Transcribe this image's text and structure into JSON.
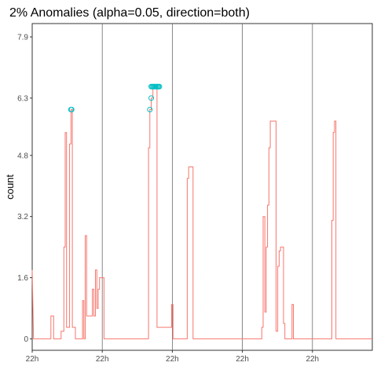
{
  "chart_data": {
    "type": "line",
    "title": "2% Anomalies (alpha=0.05, direction=both)",
    "xlabel": "",
    "ylabel": "count",
    "grid": true,
    "legend": "none",
    "xlim": [
      0,
      100
    ],
    "ylim": [
      -0.3,
      8.25
    ],
    "x_tick_values": [
      0,
      20.6,
      41.2,
      61.8,
      82.4
    ],
    "x_tick_labels": [
      "22h",
      "22h",
      "22h",
      "22h",
      "22h"
    ],
    "y_tick_values": [
      0,
      1.6,
      3.2,
      4.8,
      6.3,
      7.9
    ],
    "y_tick_labels": [
      "0",
      "1.6",
      "3.2",
      "4.8",
      "6.3",
      "7.9"
    ],
    "series": [
      {
        "color": "#f8766d",
        "kind": "step",
        "points": [
          [
            0,
            1.8
          ],
          [
            0.4,
            0
          ],
          [
            5.5,
            0
          ],
          [
            5.5,
            0.6
          ],
          [
            6.3,
            0.6
          ],
          [
            6.3,
            0
          ],
          [
            8.5,
            0
          ],
          [
            8.5,
            0.2
          ],
          [
            9.3,
            0.2
          ],
          [
            9.3,
            2.4
          ],
          [
            9.7,
            2.4
          ],
          [
            9.7,
            5.4
          ],
          [
            10.1,
            5.4
          ],
          [
            10.1,
            0.3
          ],
          [
            11.0,
            0.3
          ],
          [
            11.0,
            5.1
          ],
          [
            11.4,
            5.1
          ],
          [
            11.4,
            6.0
          ],
          [
            11.8,
            6.0
          ],
          [
            11.8,
            0.3
          ],
          [
            12.7,
            0.3
          ],
          [
            12.7,
            0
          ],
          [
            14.8,
            0
          ],
          [
            14.8,
            1.0
          ],
          [
            15.2,
            1.0
          ],
          [
            15.2,
            0
          ],
          [
            15.6,
            0
          ],
          [
            15.6,
            2.7
          ],
          [
            16.0,
            2.7
          ],
          [
            16.0,
            0.6
          ],
          [
            17.7,
            0.6
          ],
          [
            17.7,
            1.3
          ],
          [
            18.1,
            1.3
          ],
          [
            18.1,
            0.6
          ],
          [
            18.6,
            0.6
          ],
          [
            18.6,
            1.8
          ],
          [
            19.0,
            1.8
          ],
          [
            19.0,
            0.8
          ],
          [
            19.4,
            0.8
          ],
          [
            19.4,
            1.3
          ],
          [
            19.8,
            1.3
          ],
          [
            19.8,
            1.6
          ],
          [
            21.1,
            1.6
          ],
          [
            21.1,
            0
          ],
          [
            34.2,
            0
          ],
          [
            34.2,
            5.0
          ],
          [
            34.6,
            5.0
          ],
          [
            34.6,
            6.0
          ],
          [
            35.0,
            6.0
          ],
          [
            35.0,
            6.3
          ],
          [
            35.5,
            6.3
          ],
          [
            35.5,
            6.6
          ],
          [
            36.7,
            6.6
          ],
          [
            36.7,
            0.3
          ],
          [
            41.0,
            0.3
          ],
          [
            41.0,
            0.9
          ],
          [
            41.4,
            0.9
          ],
          [
            41.4,
            0
          ],
          [
            45.6,
            0
          ],
          [
            45.6,
            4.2
          ],
          [
            46.0,
            4.2
          ],
          [
            46.0,
            4.5
          ],
          [
            47.3,
            4.5
          ],
          [
            47.3,
            0
          ],
          [
            67.5,
            0
          ],
          [
            67.5,
            0.3
          ],
          [
            67.9,
            0.3
          ],
          [
            67.9,
            3.2
          ],
          [
            68.4,
            3.2
          ],
          [
            68.4,
            0.7
          ],
          [
            68.8,
            0.7
          ],
          [
            68.8,
            2.4
          ],
          [
            69.2,
            2.4
          ],
          [
            69.2,
            3.5
          ],
          [
            69.6,
            3.5
          ],
          [
            69.6,
            5.0
          ],
          [
            70.0,
            5.0
          ],
          [
            70.0,
            5.7
          ],
          [
            71.7,
            5.7
          ],
          [
            71.7,
            0.2
          ],
          [
            72.2,
            0.2
          ],
          [
            72.2,
            1.9
          ],
          [
            72.6,
            1.9
          ],
          [
            72.6,
            2.3
          ],
          [
            73.0,
            2.3
          ],
          [
            73.0,
            2.4
          ],
          [
            73.9,
            2.4
          ],
          [
            73.9,
            0.4
          ],
          [
            74.3,
            0.4
          ],
          [
            74.3,
            0
          ],
          [
            76.4,
            0
          ],
          [
            76.4,
            0.9
          ],
          [
            76.8,
            0.9
          ],
          [
            76.8,
            0
          ],
          [
            88.1,
            0
          ],
          [
            88.1,
            3.1
          ],
          [
            88.5,
            3.1
          ],
          [
            88.5,
            5.4
          ],
          [
            88.9,
            5.4
          ],
          [
            88.9,
            5.7
          ],
          [
            89.3,
            5.7
          ],
          [
            89.3,
            0
          ],
          [
            100,
            0
          ]
        ]
      }
    ],
    "anomalies": {
      "color": "#00bfc4",
      "points": [
        [
          11.4,
          6.0
        ],
        [
          11.6,
          6.0
        ],
        [
          34.6,
          6.0
        ],
        [
          35.0,
          6.3
        ],
        [
          35.0,
          6.6
        ],
        [
          35.3,
          6.6
        ],
        [
          35.6,
          6.6
        ],
        [
          35.9,
          6.6
        ],
        [
          36.2,
          6.6
        ],
        [
          36.5,
          6.6
        ],
        [
          36.8,
          6.6
        ],
        [
          37.1,
          6.6
        ],
        [
          37.4,
          6.6
        ]
      ]
    }
  }
}
